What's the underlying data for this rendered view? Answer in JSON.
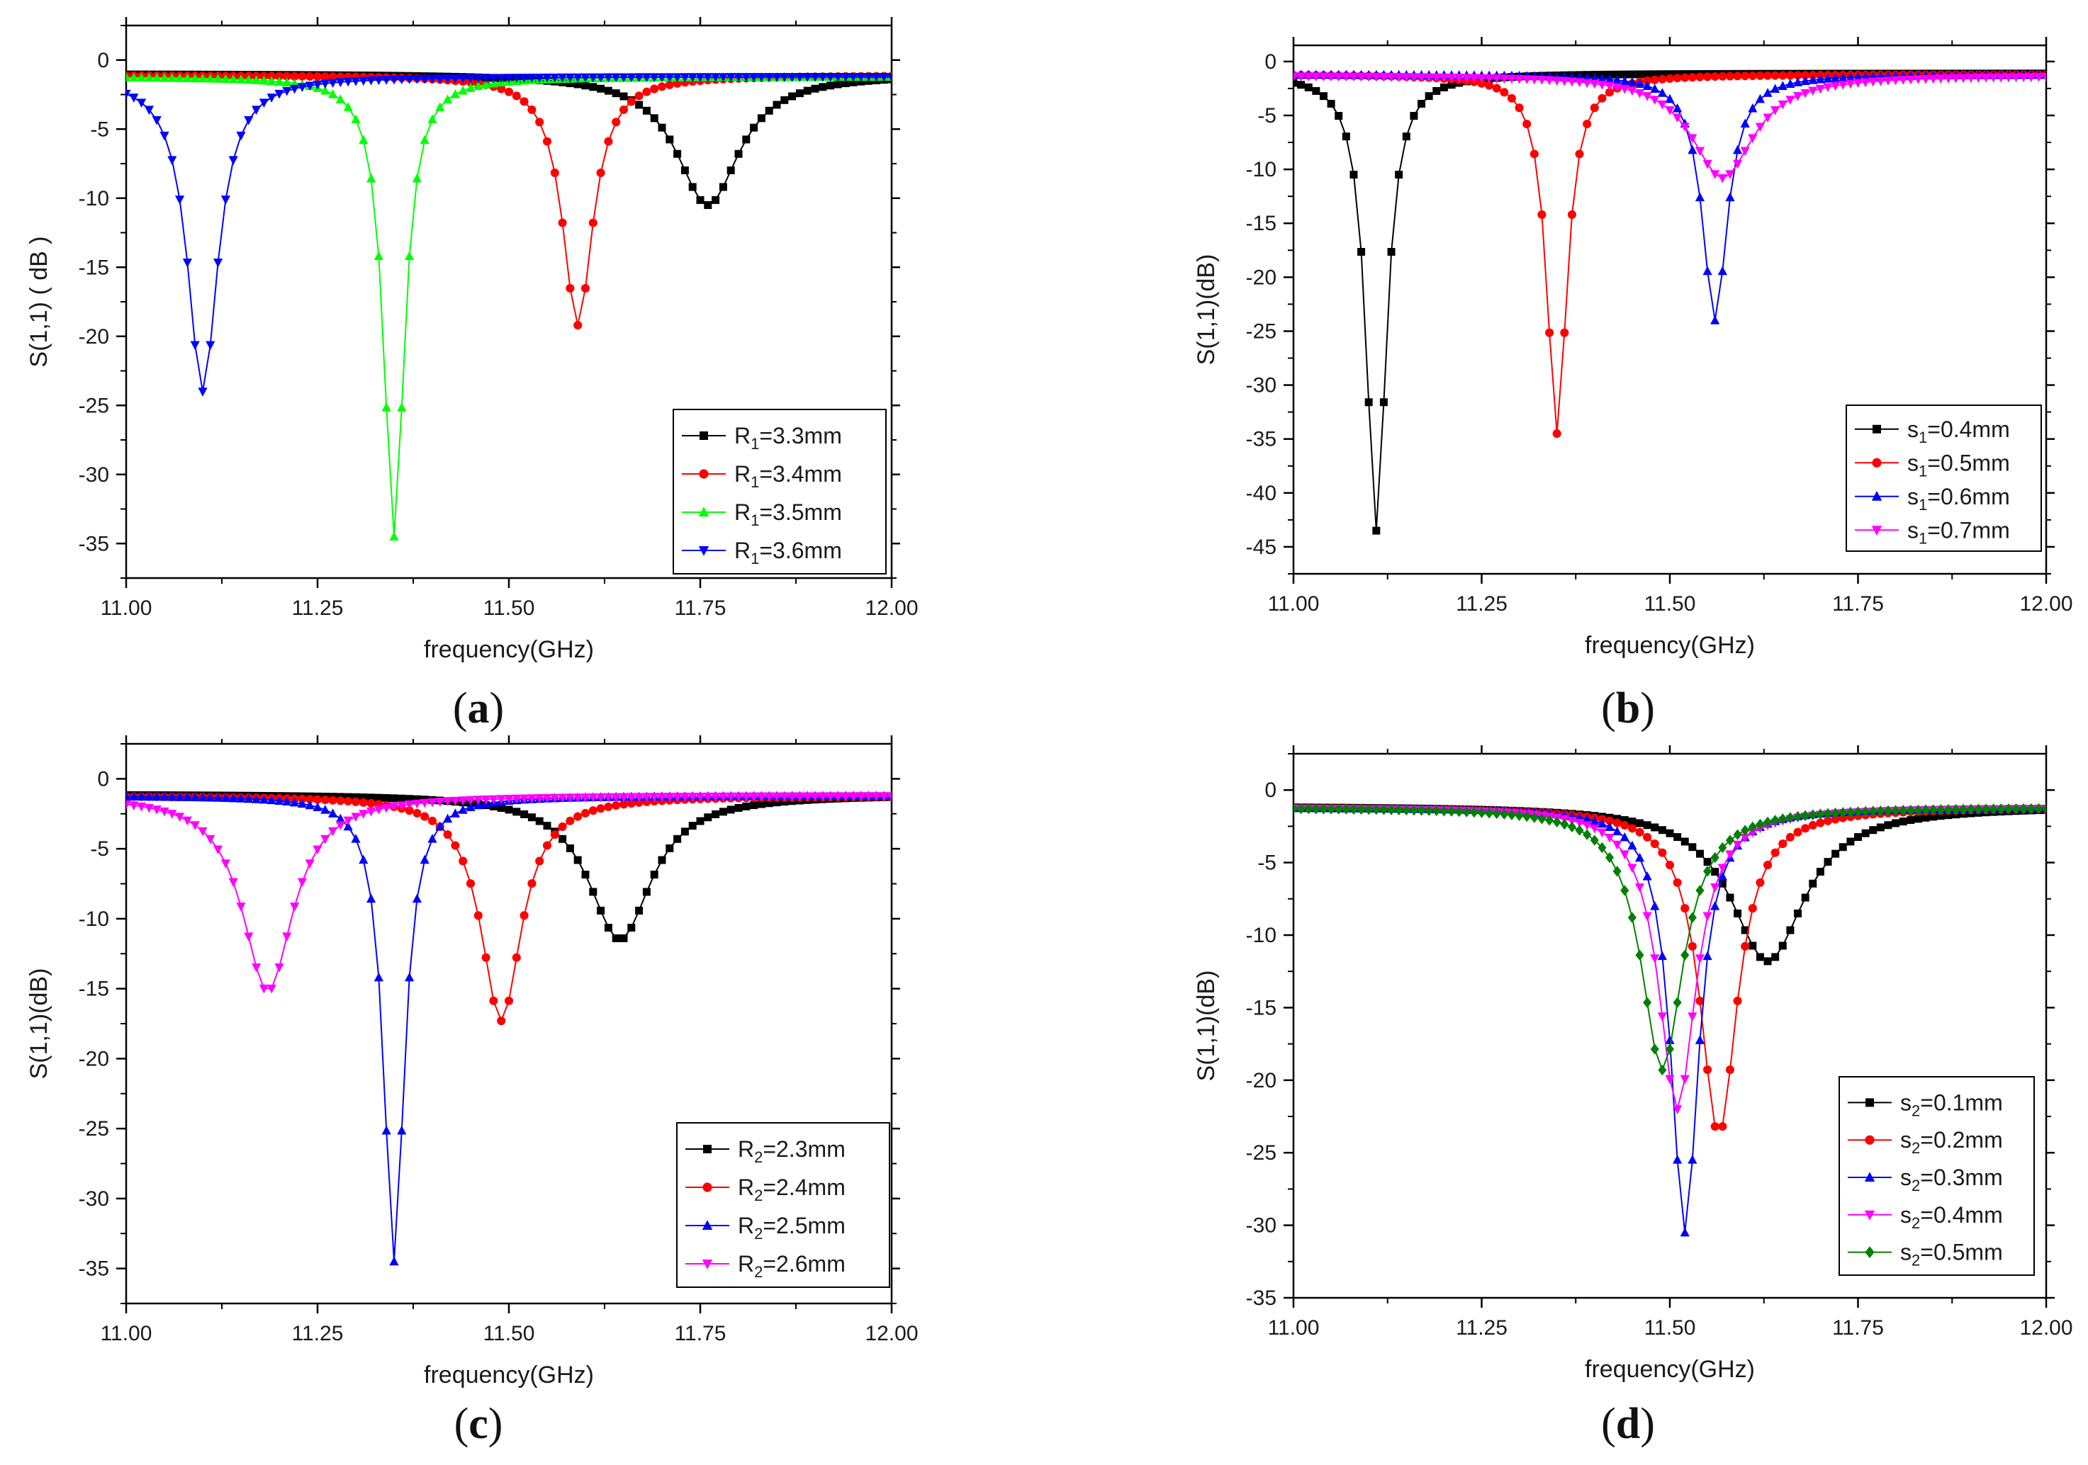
{
  "chart_data": [
    {
      "panel": "(a)",
      "panel_letter": "a",
      "type": "line",
      "xlabel": "frequency(GHz)",
      "ylabel": "S(1,1) ( dB )",
      "xlim": [
        11.0,
        12.0
      ],
      "ylim": [
        -37.5,
        2.5
      ],
      "xticks": [
        11.0,
        11.25,
        11.5,
        11.75,
        12.0
      ],
      "xtick_labels": [
        "11.00",
        "11.25",
        "11.50",
        "11.75",
        "12.00"
      ],
      "yticks": [
        0,
        -5,
        -10,
        -15,
        -20,
        -25,
        -30,
        -35
      ],
      "ytick_labels": [
        "0",
        "-5",
        "-10",
        "-15",
        "-20",
        "-25",
        "-30",
        "-35"
      ],
      "legend_position": "bottom-right",
      "series": [
        {
          "name": "R1=3.3mm",
          "sym": "R",
          "sub": "1",
          "val": "=3.3mm",
          "color": "#000000",
          "marker": "square",
          "f0": 11.76,
          "min": -10.5,
          "base": -1.0,
          "width": 0.05
        },
        {
          "name": "R1=3.4mm",
          "sym": "R",
          "sub": "1",
          "val": "=3.4mm",
          "color": "#ff0000",
          "marker": "circle",
          "f0": 11.59,
          "min": -19.2,
          "base": -1.1,
          "width": 0.024
        },
        {
          "name": "R1=3.5mm",
          "sym": "R",
          "sub": "1",
          "val": "=3.5mm",
          "color": "#00ff00",
          "marker": "triangle-up",
          "f0": 11.35,
          "min": -34.5,
          "base": -1.2,
          "width": 0.016
        },
        {
          "name": "R1=3.6mm",
          "sym": "R",
          "sub": "1",
          "val": "=3.6mm",
          "color": "#0000ff",
          "marker": "triangle-down",
          "f0": 11.1,
          "min": -24.0,
          "base": -1.2,
          "width": 0.024
        }
      ]
    },
    {
      "panel": "(b)",
      "panel_letter": "b",
      "type": "line",
      "xlabel": "frequency(GHz)",
      "ylabel": "S(1,1)(dB)",
      "xlim": [
        11.0,
        12.0
      ],
      "ylim": [
        -47.5,
        1.5
      ],
      "xticks": [
        11.0,
        11.25,
        11.5,
        11.75,
        12.0
      ],
      "xtick_labels": [
        "11.00",
        "11.25",
        "11.50",
        "11.75",
        "12.00"
      ],
      "yticks": [
        0,
        -5,
        -10,
        -15,
        -20,
        -25,
        -30,
        -35,
        -40,
        -45
      ],
      "ytick_labels": [
        "0",
        "-5",
        "-10",
        "-15",
        "-20",
        "-25",
        "-30",
        "-35",
        "-40",
        "-45"
      ],
      "legend_position": "bottom-right",
      "series": [
        {
          "name": "s1=0.4mm",
          "sym": "s",
          "sub": "1",
          "val": "=0.4mm",
          "color": "#000000",
          "marker": "square",
          "f0": 11.11,
          "min": -43.5,
          "base": -1.1,
          "width": 0.016
        },
        {
          "name": "s1=0.5mm",
          "sym": "s",
          "sub": "1",
          "val": "=0.5mm",
          "color": "#ff0000",
          "marker": "circle",
          "f0": 11.35,
          "min": -34.5,
          "base": -1.2,
          "width": 0.016
        },
        {
          "name": "s1=0.6mm",
          "sym": "s",
          "sub": "1",
          "val": "=0.6mm",
          "color": "#0000ff",
          "marker": "triangle-up",
          "f0": 11.56,
          "min": -24.0,
          "base": -1.2,
          "width": 0.02
        },
        {
          "name": "s1=0.7mm",
          "sym": "s",
          "sub": "1",
          "val": "=0.7mm",
          "color": "#ff00ff",
          "marker": "triangle-down",
          "f0": 11.57,
          "min": -10.8,
          "base": -1.3,
          "width": 0.05
        }
      ]
    },
    {
      "panel": "(c)",
      "panel_letter": "c",
      "type": "line",
      "xlabel": "frequency(GHz)",
      "ylabel": "S(1,1)(dB)",
      "xlim": [
        11.0,
        12.0
      ],
      "ylim": [
        -37.5,
        2.5
      ],
      "xticks": [
        11.0,
        11.25,
        11.5,
        11.75,
        12.0
      ],
      "xtick_labels": [
        "11.00",
        "11.25",
        "11.50",
        "11.75",
        "12.00"
      ],
      "yticks": [
        0,
        -5,
        -10,
        -15,
        -20,
        -25,
        -30,
        -35
      ],
      "ytick_labels": [
        "0",
        "-5",
        "-10",
        "-15",
        "-20",
        "-25",
        "-30",
        "-35"
      ],
      "legend_position": "bottom-right",
      "series": [
        {
          "name": "R2=2.3mm",
          "sym": "R",
          "sub": "2",
          "val": "=2.3mm",
          "color": "#000000",
          "marker": "square",
          "f0": 11.645,
          "min": -11.5,
          "base": -1.1,
          "width": 0.05
        },
        {
          "name": "R2=2.4mm",
          "sym": "R",
          "sub": "2",
          "val": "=2.4mm",
          "color": "#ff0000",
          "marker": "circle",
          "f0": 11.49,
          "min": -17.3,
          "base": -1.2,
          "width": 0.032
        },
        {
          "name": "R2=2.5mm",
          "sym": "R",
          "sub": "2",
          "val": "=2.5mm",
          "color": "#0000ff",
          "marker": "triangle-up",
          "f0": 11.35,
          "min": -34.5,
          "base": -1.2,
          "width": 0.016
        },
        {
          "name": "R2=2.6mm",
          "sym": "R",
          "sub": "2",
          "val": "=2.6mm",
          "color": "#ff00ff",
          "marker": "triangle-down",
          "f0": 11.185,
          "min": -15.2,
          "base": -1.2,
          "width": 0.04
        }
      ]
    },
    {
      "panel": "(d)",
      "panel_letter": "d",
      "type": "line",
      "xlabel": "frequency(GHz)",
      "ylabel": "S(1,1)(dB)",
      "xlim": [
        11.0,
        12.0
      ],
      "ylim": [
        -35,
        2.5
      ],
      "xticks": [
        11.0,
        11.25,
        11.5,
        11.75,
        12.0
      ],
      "xtick_labels": [
        "11.00",
        "11.25",
        "11.50",
        "11.75",
        "12.00"
      ],
      "yticks": [
        0,
        -5,
        -10,
        -15,
        -20,
        -25,
        -30,
        -35
      ],
      "ytick_labels": [
        "0",
        "-5",
        "-10",
        "-15",
        "-20",
        "-25",
        "-30",
        "-35"
      ],
      "legend_position": "bottom-right",
      "series": [
        {
          "name": "s2=0.1mm",
          "sym": "s",
          "sub": "2",
          "val": "=0.1mm",
          "color": "#000000",
          "marker": "square",
          "f0": 11.63,
          "min": -11.8,
          "base": -1.1,
          "width": 0.06
        },
        {
          "name": "s2=0.2mm",
          "sym": "s",
          "sub": "2",
          "val": "=0.2mm",
          "color": "#ff0000",
          "marker": "circle",
          "f0": 11.565,
          "min": -23.8,
          "base": -1.2,
          "width": 0.03
        },
        {
          "name": "s2=0.3mm",
          "sym": "s",
          "sub": "2",
          "val": "=0.3mm",
          "color": "#0000ff",
          "marker": "triangle-up",
          "f0": 11.52,
          "min": -30.5,
          "base": -1.2,
          "width": 0.022
        },
        {
          "name": "s2=0.4mm",
          "sym": "s",
          "sub": "2",
          "val": "=0.4mm",
          "color": "#ff00ff",
          "marker": "triangle-down",
          "f0": 11.51,
          "min": -22.0,
          "base": -1.2,
          "width": 0.03
        },
        {
          "name": "s2=0.5mm",
          "sym": "s",
          "sub": "2",
          "val": "=0.5mm",
          "color": "#008000",
          "marker": "diamond",
          "f0": 11.49,
          "min": -19.3,
          "base": -1.2,
          "width": 0.034
        }
      ]
    }
  ]
}
